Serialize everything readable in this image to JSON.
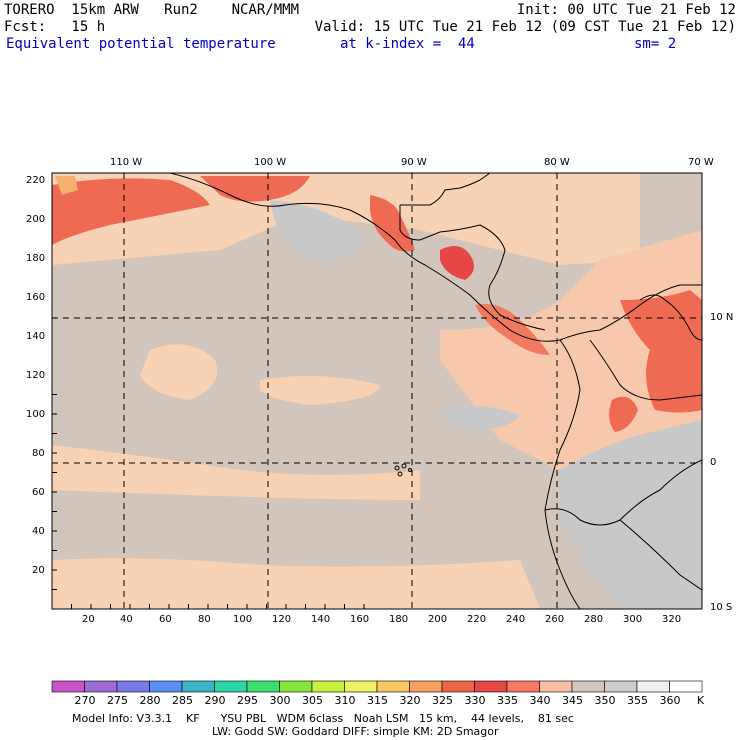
{
  "header": {
    "line1_left": "TORERO  15km ARW   Run2    NCAR/MMM",
    "line1_right": "Init: 00 UTC Tue 21 Feb 12",
    "line2_left": "Fcst:   15 h",
    "line2_right": "Valid: 15 UTC Tue 21 Feb 12 (09 CST Tue 21 Feb 12)",
    "line3_field": "Equivalent potential temperature",
    "line3_level": "at k-index =  44",
    "line3_sm": "sm= 2"
  },
  "map": {
    "top_lon_labels": [
      "110 W",
      "100 W",
      "90 W",
      "80 W",
      "70 W"
    ],
    "right_lat_labels": [
      "10 N",
      "0",
      "10 S"
    ],
    "y_ticks": [
      "220",
      "200",
      "180",
      "160",
      "140",
      "120",
      "100",
      "80",
      "60",
      "40",
      "20"
    ],
    "x_ticks": [
      "20",
      "40",
      "60",
      "80",
      "100",
      "120",
      "140",
      "160",
      "180",
      "200",
      "220",
      "240",
      "260",
      "280",
      "300",
      "320"
    ]
  },
  "colorbar": {
    "labels": [
      "270",
      "275",
      "280",
      "285",
      "290",
      "295",
      "300",
      "305",
      "310",
      "315",
      "320",
      "325",
      "330",
      "335",
      "340",
      "345",
      "350",
      "355",
      "360"
    ],
    "unit": "K",
    "colors": [
      "#c855c8",
      "#9c6cd6",
      "#7a7ae6",
      "#5a8ef0",
      "#3cb4c8",
      "#2dd4a6",
      "#3ce06e",
      "#84e63c",
      "#c8f03c",
      "#f0f064",
      "#f8c864",
      "#f8a060",
      "#f06446",
      "#e64646",
      "#f87864",
      "#f8bea2",
      "#d2c6bc",
      "#cccccc",
      "#f0f0f0",
      "#ffffff"
    ]
  },
  "footer": {
    "line1": "Model Info: V3.3.1    KF      YSU PBL   WDM 6class   Noah LSM   15 km,    44 levels,    81 sec",
    "line2": "LW: Godd SW: Goddard DIFF: simple KM: 2D Smagor"
  }
}
